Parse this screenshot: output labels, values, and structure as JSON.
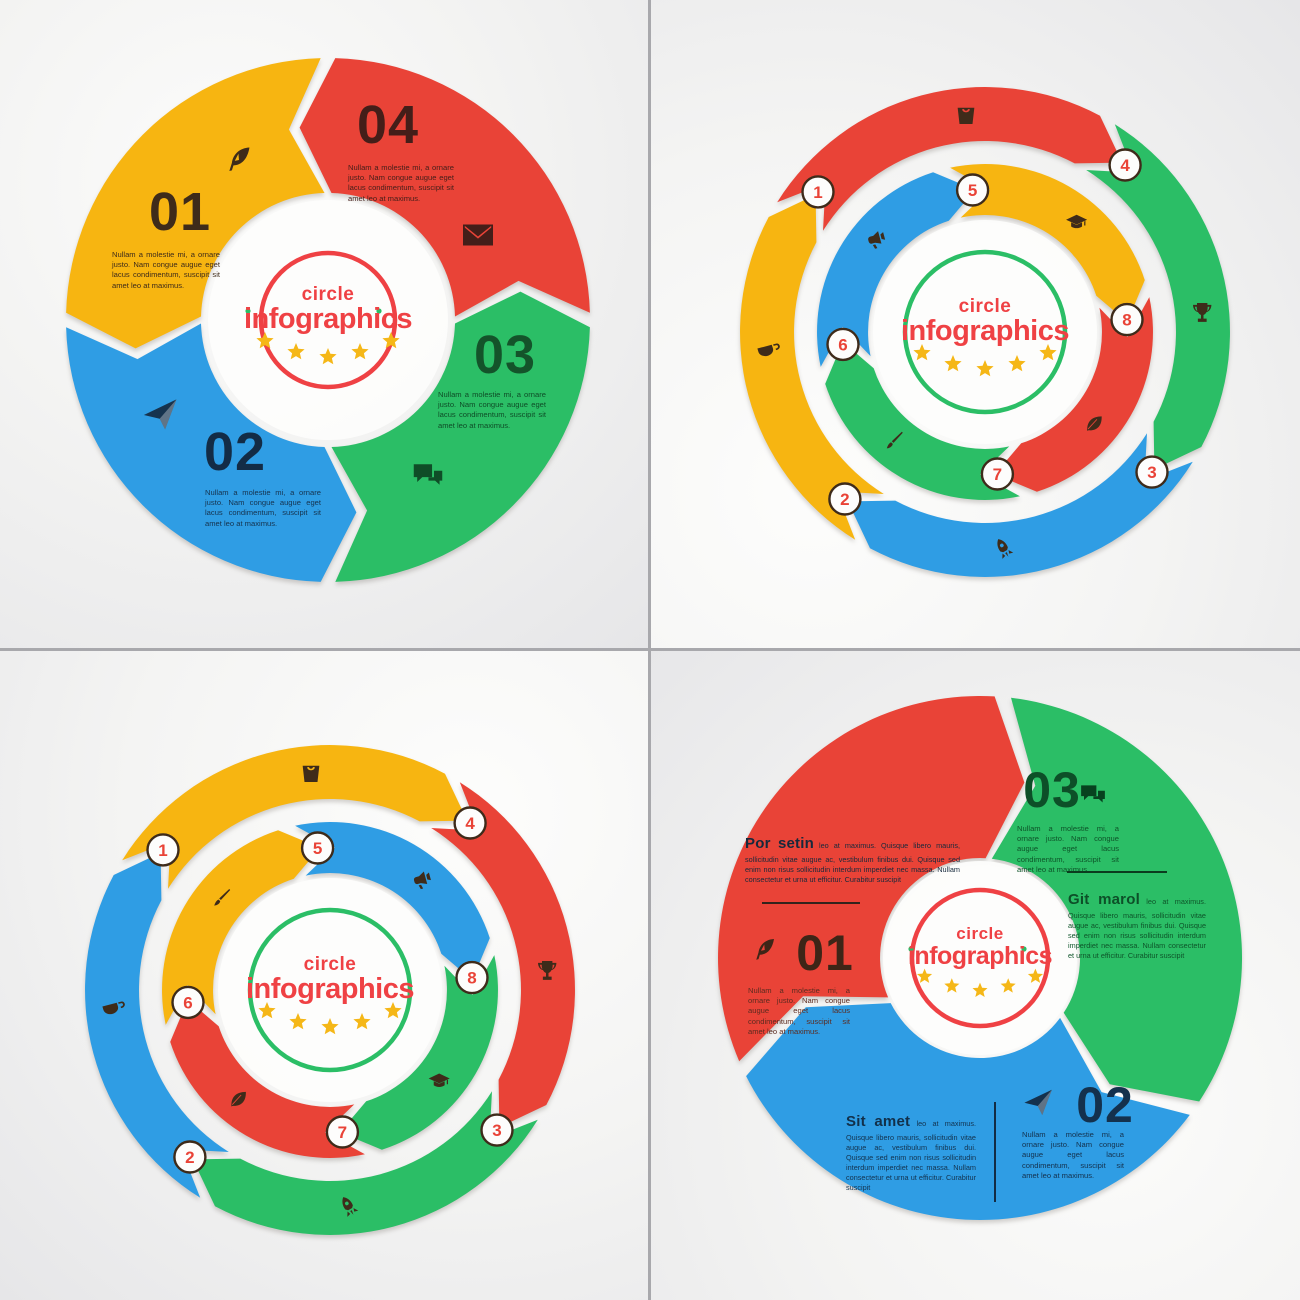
{
  "palette": {
    "yellow": "#F7B511",
    "red": "#E94337",
    "green": "#2BBE66",
    "blue": "#2F9DE4",
    "ink_brown": "#3E2B1A",
    "ink_maroon": "#441E19",
    "ink_navy": "#16334E",
    "ink_green": "#0F4D27",
    "accent_red": "#EF4144",
    "star_yellow": "#F5B717",
    "badge_ring": "#3E2B1A",
    "badge_number": "#E94337"
  },
  "panels": {
    "q1": {
      "title": "four step arrow cycle",
      "center": {
        "word1": "circle",
        "word2": "infographics",
        "star_count": 5
      },
      "items": [
        {
          "num": "01",
          "icon": "feather-icon",
          "color": "#F7B511",
          "ink": "#3E2B1A",
          "text": "Nullam a molestie mi, a ornare justo. Nam congue augue eget lacus condimentum, suscipit sit amet leo at maximus."
        },
        {
          "num": "02",
          "icon": "paper-plane-icon",
          "color": "#2F9DE4",
          "ink": "#16334E",
          "text": "Nullam a molestie mi, a ornare justo. Nam congue augue eget lacus condimentum, suscipit sit amet leo at maximus."
        },
        {
          "num": "03",
          "icon": "chat-icon",
          "color": "#2BBE66",
          "ink": "#0F4D27",
          "text": "Nullam a molestie mi, a ornare justo. Nam congue augue eget lacus condimentum, suscipit sit amet leo at maximus."
        },
        {
          "num": "04",
          "icon": "envelope-icon",
          "color": "#E94337",
          "ink": "#441E19",
          "text": "Nullam a molestie mi, a ornare justo. Nam congue augue eget lacus condimentum, suscipit sit amet leo at maximus."
        }
      ]
    },
    "q2": {
      "title": "eight step double ring cycle",
      "center": {
        "word1": "circle",
        "word2": "infographics",
        "star_count": 5
      },
      "outer": [
        {
          "badge": "1",
          "color": "#E94337",
          "icon": "shopping-bag-icon"
        },
        {
          "badge": "4",
          "color": "#2BBE66",
          "icon": "trophy-icon"
        },
        {
          "badge": "3",
          "color": "#2F9DE4",
          "icon": "rocket-icon"
        },
        {
          "badge": "2",
          "color": "#F7B511",
          "icon": "cup-icon"
        }
      ],
      "inner": [
        {
          "badge": "5",
          "color": "#F7B511",
          "icon": "graduation-cap-icon"
        },
        {
          "badge": "8",
          "color": "#E94337",
          "icon": "leaf-icon"
        },
        {
          "badge": "7",
          "color": "#2BBE66",
          "icon": "paintbrush-icon"
        },
        {
          "badge": "6",
          "color": "#2F9DE4",
          "icon": "megaphone-icon"
        }
      ]
    },
    "q3": {
      "title": "eight step double ring cycle",
      "center": {
        "word1": "circle",
        "word2": "infographics",
        "star_count": 5
      },
      "outer": [
        {
          "badge": "1",
          "color": "#F7B511",
          "icon": "shopping-bag-icon"
        },
        {
          "badge": "4",
          "color": "#E94337",
          "icon": "trophy-icon"
        },
        {
          "badge": "3",
          "color": "#2BBE66",
          "icon": "rocket-icon"
        },
        {
          "badge": "2",
          "color": "#2F9DE4",
          "icon": "cup-icon"
        }
      ],
      "inner": [
        {
          "badge": "5",
          "color": "#2F9DE4",
          "icon": "megaphone-icon"
        },
        {
          "badge": "8",
          "color": "#2BBE66",
          "icon": "graduation-cap-icon"
        },
        {
          "badge": "7",
          "color": "#E94337",
          "icon": "leaf-icon"
        },
        {
          "badge": "6",
          "color": "#F7B511",
          "icon": "paintbrush-icon"
        }
      ]
    },
    "q4": {
      "title": "three step arrow cycle",
      "center": {
        "word1": "circle",
        "word2": "infographics",
        "star_count": 5
      },
      "segments": [
        {
          "color": "#E94337"
        },
        {
          "color": "#2BBE66"
        },
        {
          "color": "#2F9DE4"
        }
      ],
      "blocks": {
        "por": {
          "heading": "Por setin",
          "body": "leo at maximus. Quisque libero mauris, sollicitudin vitae augue ac, vestibulum finibus dui. Quisque sed enim non risus sollicitudin interdum imperdiet nec massa. Nullam consectetur et urna ut efficitur. Curabitur suscipit"
        },
        "git": {
          "heading": "Git marol",
          "body": "leo at maximus. Quisque libero mauris, sollicitudin vitae augue ac, vestibulum finibus dui. Quisque sed enim non risus sollicitudin interdum imperdiet nec massa. Nullam consectetur et urna ut efficitur. Curabitur suscipit"
        },
        "sit": {
          "heading": "Sit amet",
          "body": "leo at maximus. Quisque libero mauris, sollicitudin vitae augue ac, vestibulum finibus dui. Quisque sed enim non risus sollicitudin interdum imperdiet nec massa. Nullam consectetur et urna ut efficitur. Curabitur suscipit"
        },
        "n01": {
          "num": "01",
          "icon": "feather-icon",
          "text": "Nullam a molestie mi, a ornare justo. Nam congue augue eget lacus condimentum, suscipit sit amet leo at maximus."
        },
        "n02": {
          "num": "02",
          "icon": "paper-plane-icon",
          "text": "Nullam a molestie mi, a ornare justo. Nam congue augue eget lacus condimentum, suscipit sit amet leo at maximus."
        },
        "n03": {
          "num": "03",
          "icon": "chat-icon",
          "text": "Nullam a molestie mi, a ornare justo. Nam congue augue eget lacus condimentum, suscipit sit amet leo at maximus."
        }
      }
    }
  }
}
